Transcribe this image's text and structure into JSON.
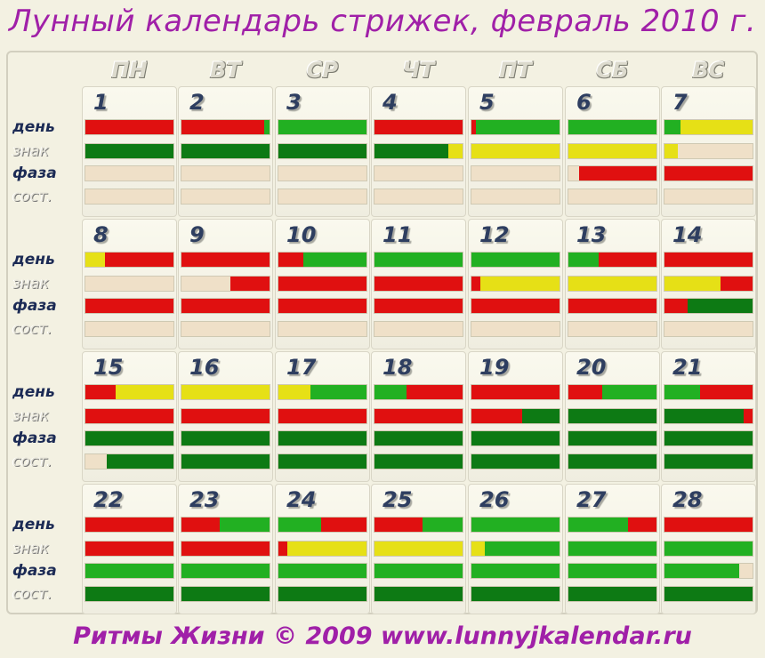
{
  "title": "Лунный календарь стрижек, февраль 2010 г.",
  "footer": "Ритмы Жизни © 2009 www.lunnyjkalendar.ru",
  "colors": {
    "r": "#e01010",
    "y": "#e6e016",
    "g": "#22b022",
    "d": "#0d7a14",
    "e": "#efe0c8"
  },
  "day_names": [
    "ПН",
    "ВТ",
    "СР",
    "ЧТ",
    "ПТ",
    "СБ",
    "ВС"
  ],
  "row_labels": [
    "день",
    "знак",
    "фаза",
    "сост."
  ],
  "days": [
    {
      "n": "1",
      "bars": [
        [
          [
            "r",
            100
          ]
        ],
        [
          [
            "d",
            100
          ]
        ],
        [
          [
            "e",
            100
          ]
        ],
        [
          [
            "e",
            100
          ]
        ]
      ]
    },
    {
      "n": "2",
      "bars": [
        [
          [
            "r",
            94
          ],
          [
            "g",
            6
          ]
        ],
        [
          [
            "d",
            100
          ]
        ],
        [
          [
            "e",
            100
          ]
        ],
        [
          [
            "e",
            100
          ]
        ]
      ]
    },
    {
      "n": "3",
      "bars": [
        [
          [
            "g",
            100
          ]
        ],
        [
          [
            "d",
            100
          ]
        ],
        [
          [
            "e",
            100
          ]
        ],
        [
          [
            "e",
            100
          ]
        ]
      ]
    },
    {
      "n": "4",
      "bars": [
        [
          [
            "r",
            100
          ]
        ],
        [
          [
            "d",
            84
          ],
          [
            "y",
            16
          ]
        ],
        [
          [
            "e",
            100
          ]
        ],
        [
          [
            "e",
            100
          ]
        ]
      ]
    },
    {
      "n": "5",
      "bars": [
        [
          [
            "r",
            5
          ],
          [
            "g",
            95
          ]
        ],
        [
          [
            "y",
            100
          ]
        ],
        [
          [
            "e",
            100
          ]
        ],
        [
          [
            "e",
            100
          ]
        ]
      ]
    },
    {
      "n": "6",
      "bars": [
        [
          [
            "g",
            100
          ]
        ],
        [
          [
            "y",
            100
          ]
        ],
        [
          [
            "e",
            12
          ],
          [
            "r",
            88
          ]
        ],
        [
          [
            "e",
            100
          ]
        ]
      ]
    },
    {
      "n": "7",
      "bars": [
        [
          [
            "g",
            18
          ],
          [
            "y",
            82
          ]
        ],
        [
          [
            "y",
            15
          ],
          [
            "e",
            85
          ]
        ],
        [
          [
            "r",
            100
          ]
        ],
        [
          [
            "e",
            100
          ]
        ]
      ]
    },
    {
      "n": "8",
      "bars": [
        [
          [
            "y",
            22
          ],
          [
            "r",
            78
          ]
        ],
        [
          [
            "e",
            100
          ]
        ],
        [
          [
            "r",
            100
          ]
        ],
        [
          [
            "e",
            100
          ]
        ]
      ]
    },
    {
      "n": "9",
      "bars": [
        [
          [
            "r",
            100
          ]
        ],
        [
          [
            "e",
            56
          ],
          [
            "r",
            44
          ]
        ],
        [
          [
            "r",
            100
          ]
        ],
        [
          [
            "e",
            100
          ]
        ]
      ]
    },
    {
      "n": "10",
      "bars": [
        [
          [
            "r",
            28
          ],
          [
            "g",
            72
          ]
        ],
        [
          [
            "r",
            100
          ]
        ],
        [
          [
            "r",
            100
          ]
        ],
        [
          [
            "e",
            100
          ]
        ]
      ]
    },
    {
      "n": "11",
      "bars": [
        [
          [
            "g",
            100
          ]
        ],
        [
          [
            "r",
            100
          ]
        ],
        [
          [
            "r",
            100
          ]
        ],
        [
          [
            "e",
            100
          ]
        ]
      ]
    },
    {
      "n": "12",
      "bars": [
        [
          [
            "g",
            100
          ]
        ],
        [
          [
            "r",
            10
          ],
          [
            "y",
            90
          ]
        ],
        [
          [
            "r",
            100
          ]
        ],
        [
          [
            "e",
            100
          ]
        ]
      ]
    },
    {
      "n": "13",
      "bars": [
        [
          [
            "g",
            34
          ],
          [
            "r",
            66
          ]
        ],
        [
          [
            "y",
            100
          ]
        ],
        [
          [
            "r",
            100
          ]
        ],
        [
          [
            "e",
            100
          ]
        ]
      ]
    },
    {
      "n": "14",
      "bars": [
        [
          [
            "r",
            100
          ]
        ],
        [
          [
            "y",
            64
          ],
          [
            "r",
            36
          ]
        ],
        [
          [
            "r",
            26
          ],
          [
            "d",
            74
          ]
        ],
        [
          [
            "e",
            100
          ]
        ]
      ]
    },
    {
      "n": "15",
      "bars": [
        [
          [
            "r",
            34
          ],
          [
            "y",
            66
          ]
        ],
        [
          [
            "r",
            100
          ]
        ],
        [
          [
            "d",
            100
          ]
        ],
        [
          [
            "e",
            24
          ],
          [
            "d",
            76
          ]
        ]
      ]
    },
    {
      "n": "16",
      "bars": [
        [
          [
            "y",
            100
          ]
        ],
        [
          [
            "r",
            100
          ]
        ],
        [
          [
            "d",
            100
          ]
        ],
        [
          [
            "d",
            100
          ]
        ]
      ]
    },
    {
      "n": "17",
      "bars": [
        [
          [
            "y",
            36
          ],
          [
            "g",
            64
          ]
        ],
        [
          [
            "r",
            100
          ]
        ],
        [
          [
            "d",
            100
          ]
        ],
        [
          [
            "d",
            100
          ]
        ]
      ]
    },
    {
      "n": "18",
      "bars": [
        [
          [
            "g",
            36
          ],
          [
            "r",
            64
          ]
        ],
        [
          [
            "r",
            100
          ]
        ],
        [
          [
            "d",
            100
          ]
        ],
        [
          [
            "d",
            100
          ]
        ]
      ]
    },
    {
      "n": "19",
      "bars": [
        [
          [
            "r",
            100
          ]
        ],
        [
          [
            "r",
            58
          ],
          [
            "d",
            42
          ]
        ],
        [
          [
            "d",
            100
          ]
        ],
        [
          [
            "d",
            100
          ]
        ]
      ]
    },
    {
      "n": "20",
      "bars": [
        [
          [
            "r",
            38
          ],
          [
            "g",
            62
          ]
        ],
        [
          [
            "d",
            100
          ]
        ],
        [
          [
            "d",
            100
          ]
        ],
        [
          [
            "d",
            100
          ]
        ]
      ]
    },
    {
      "n": "21",
      "bars": [
        [
          [
            "g",
            40
          ],
          [
            "r",
            60
          ]
        ],
        [
          [
            "d",
            90
          ],
          [
            "r",
            10
          ]
        ],
        [
          [
            "d",
            100
          ]
        ],
        [
          [
            "d",
            100
          ]
        ]
      ]
    },
    {
      "n": "22",
      "bars": [
        [
          [
            "r",
            100
          ]
        ],
        [
          [
            "r",
            100
          ]
        ],
        [
          [
            "g",
            100
          ]
        ],
        [
          [
            "d",
            100
          ]
        ]
      ]
    },
    {
      "n": "23",
      "bars": [
        [
          [
            "r",
            43
          ],
          [
            "g",
            57
          ]
        ],
        [
          [
            "r",
            100
          ]
        ],
        [
          [
            "g",
            100
          ]
        ],
        [
          [
            "d",
            100
          ]
        ]
      ]
    },
    {
      "n": "24",
      "bars": [
        [
          [
            "g",
            48
          ],
          [
            "r",
            52
          ]
        ],
        [
          [
            "r",
            10
          ],
          [
            "y",
            90
          ]
        ],
        [
          [
            "g",
            100
          ]
        ],
        [
          [
            "d",
            100
          ]
        ]
      ]
    },
    {
      "n": "25",
      "bars": [
        [
          [
            "r",
            55
          ],
          [
            "g",
            45
          ]
        ],
        [
          [
            "y",
            100
          ]
        ],
        [
          [
            "g",
            100
          ]
        ],
        [
          [
            "d",
            100
          ]
        ]
      ]
    },
    {
      "n": "26",
      "bars": [
        [
          [
            "g",
            100
          ]
        ],
        [
          [
            "y",
            15
          ],
          [
            "g",
            85
          ]
        ],
        [
          [
            "g",
            100
          ]
        ],
        [
          [
            "d",
            100
          ]
        ]
      ]
    },
    {
      "n": "27",
      "bars": [
        [
          [
            "g",
            68
          ],
          [
            "r",
            32
          ]
        ],
        [
          [
            "g",
            100
          ]
        ],
        [
          [
            "g",
            100
          ]
        ],
        [
          [
            "d",
            100
          ]
        ]
      ]
    },
    {
      "n": "28",
      "bars": [
        [
          [
            "r",
            100
          ]
        ],
        [
          [
            "g",
            100
          ]
        ],
        [
          [
            "g",
            85
          ],
          [
            "e",
            15
          ]
        ],
        [
          [
            "d",
            100
          ]
        ]
      ]
    }
  ]
}
